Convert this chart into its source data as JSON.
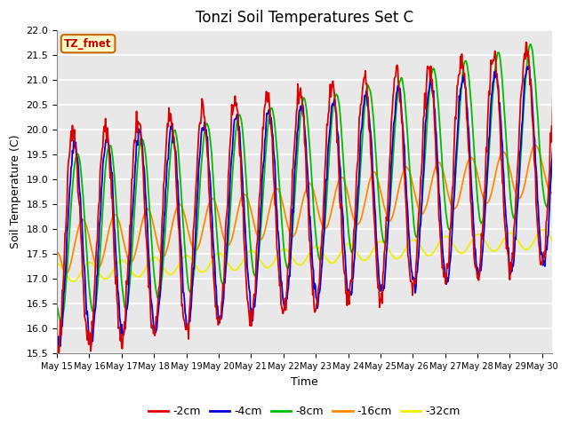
{
  "title": "Tonzi Soil Temperatures Set C",
  "xlabel": "Time",
  "ylabel": "Soil Temperature (C)",
  "ylim": [
    15.5,
    22.0
  ],
  "annotation_text": "TZ_fmet",
  "annotation_facecolor": "#ffffcc",
  "annotation_edgecolor": "#cc6600",
  "annotation_textcolor": "#cc0000",
  "legend_labels": [
    "-2cm",
    "-4cm",
    "-8cm",
    "-16cm",
    "-32cm"
  ],
  "line_colors": [
    "#dd0000",
    "#0000dd",
    "#00bb00",
    "#ff8800",
    "#eeee00"
  ],
  "xtick_labels": [
    "May 15",
    "May 16",
    "May 17",
    "May 18",
    "May 19",
    "May 20",
    "May 21",
    "May 22",
    "May 23",
    "May 24",
    "May 25",
    "May 26",
    "May 27",
    "May 28",
    "May 29",
    "May 30"
  ],
  "plot_bg_color": "#e8e8e8",
  "grid_color": "#ffffff",
  "title_fontsize": 12,
  "yticks": [
    15.5,
    16.0,
    16.5,
    17.0,
    17.5,
    18.0,
    18.5,
    19.0,
    19.5,
    20.0,
    20.5,
    21.0,
    21.5,
    22.0
  ]
}
